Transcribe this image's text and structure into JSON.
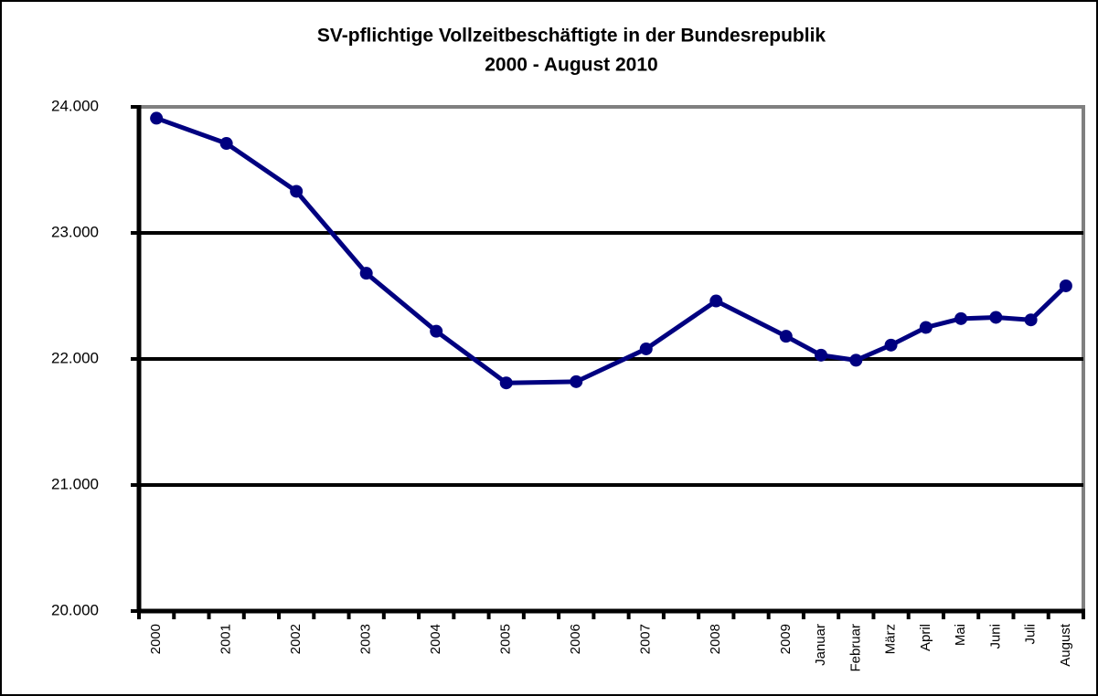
{
  "chart_data": {
    "type": "line",
    "title": "SV-pflichtige Vollzeitbeschäftigte in der Bundesrepublik",
    "subtitle": "2000 - August 2010",
    "categories": [
      "2000",
      null,
      "2001",
      null,
      "2002",
      null,
      "2003",
      null,
      "2004",
      null,
      "2005",
      null,
      "2006",
      null,
      "2007",
      null,
      "2008",
      null,
      "2009",
      "Januar",
      "Februar",
      "März",
      "April",
      "Mai",
      "Juni",
      "Juli",
      "August"
    ],
    "series": [
      {
        "name": "SV-pflichtige Vollzeitbeschäftigte",
        "color": "#000080",
        "values": [
          23910,
          null,
          23710,
          null,
          23330,
          null,
          22680,
          null,
          22220,
          null,
          21810,
          null,
          21820,
          null,
          22080,
          null,
          22460,
          null,
          22180,
          22030,
          21990,
          22110,
          22250,
          22320,
          22330,
          22310,
          22580
        ]
      }
    ],
    "ylim": [
      20000,
      24000
    ],
    "yticks": [
      {
        "value": 20000,
        "label": "20.000"
      },
      {
        "value": 21000,
        "label": "21.000"
      },
      {
        "value": 22000,
        "label": "22.000"
      },
      {
        "value": 23000,
        "label": "23.000"
      },
      {
        "value": 24000,
        "label": "24.000"
      }
    ],
    "grid": true
  }
}
